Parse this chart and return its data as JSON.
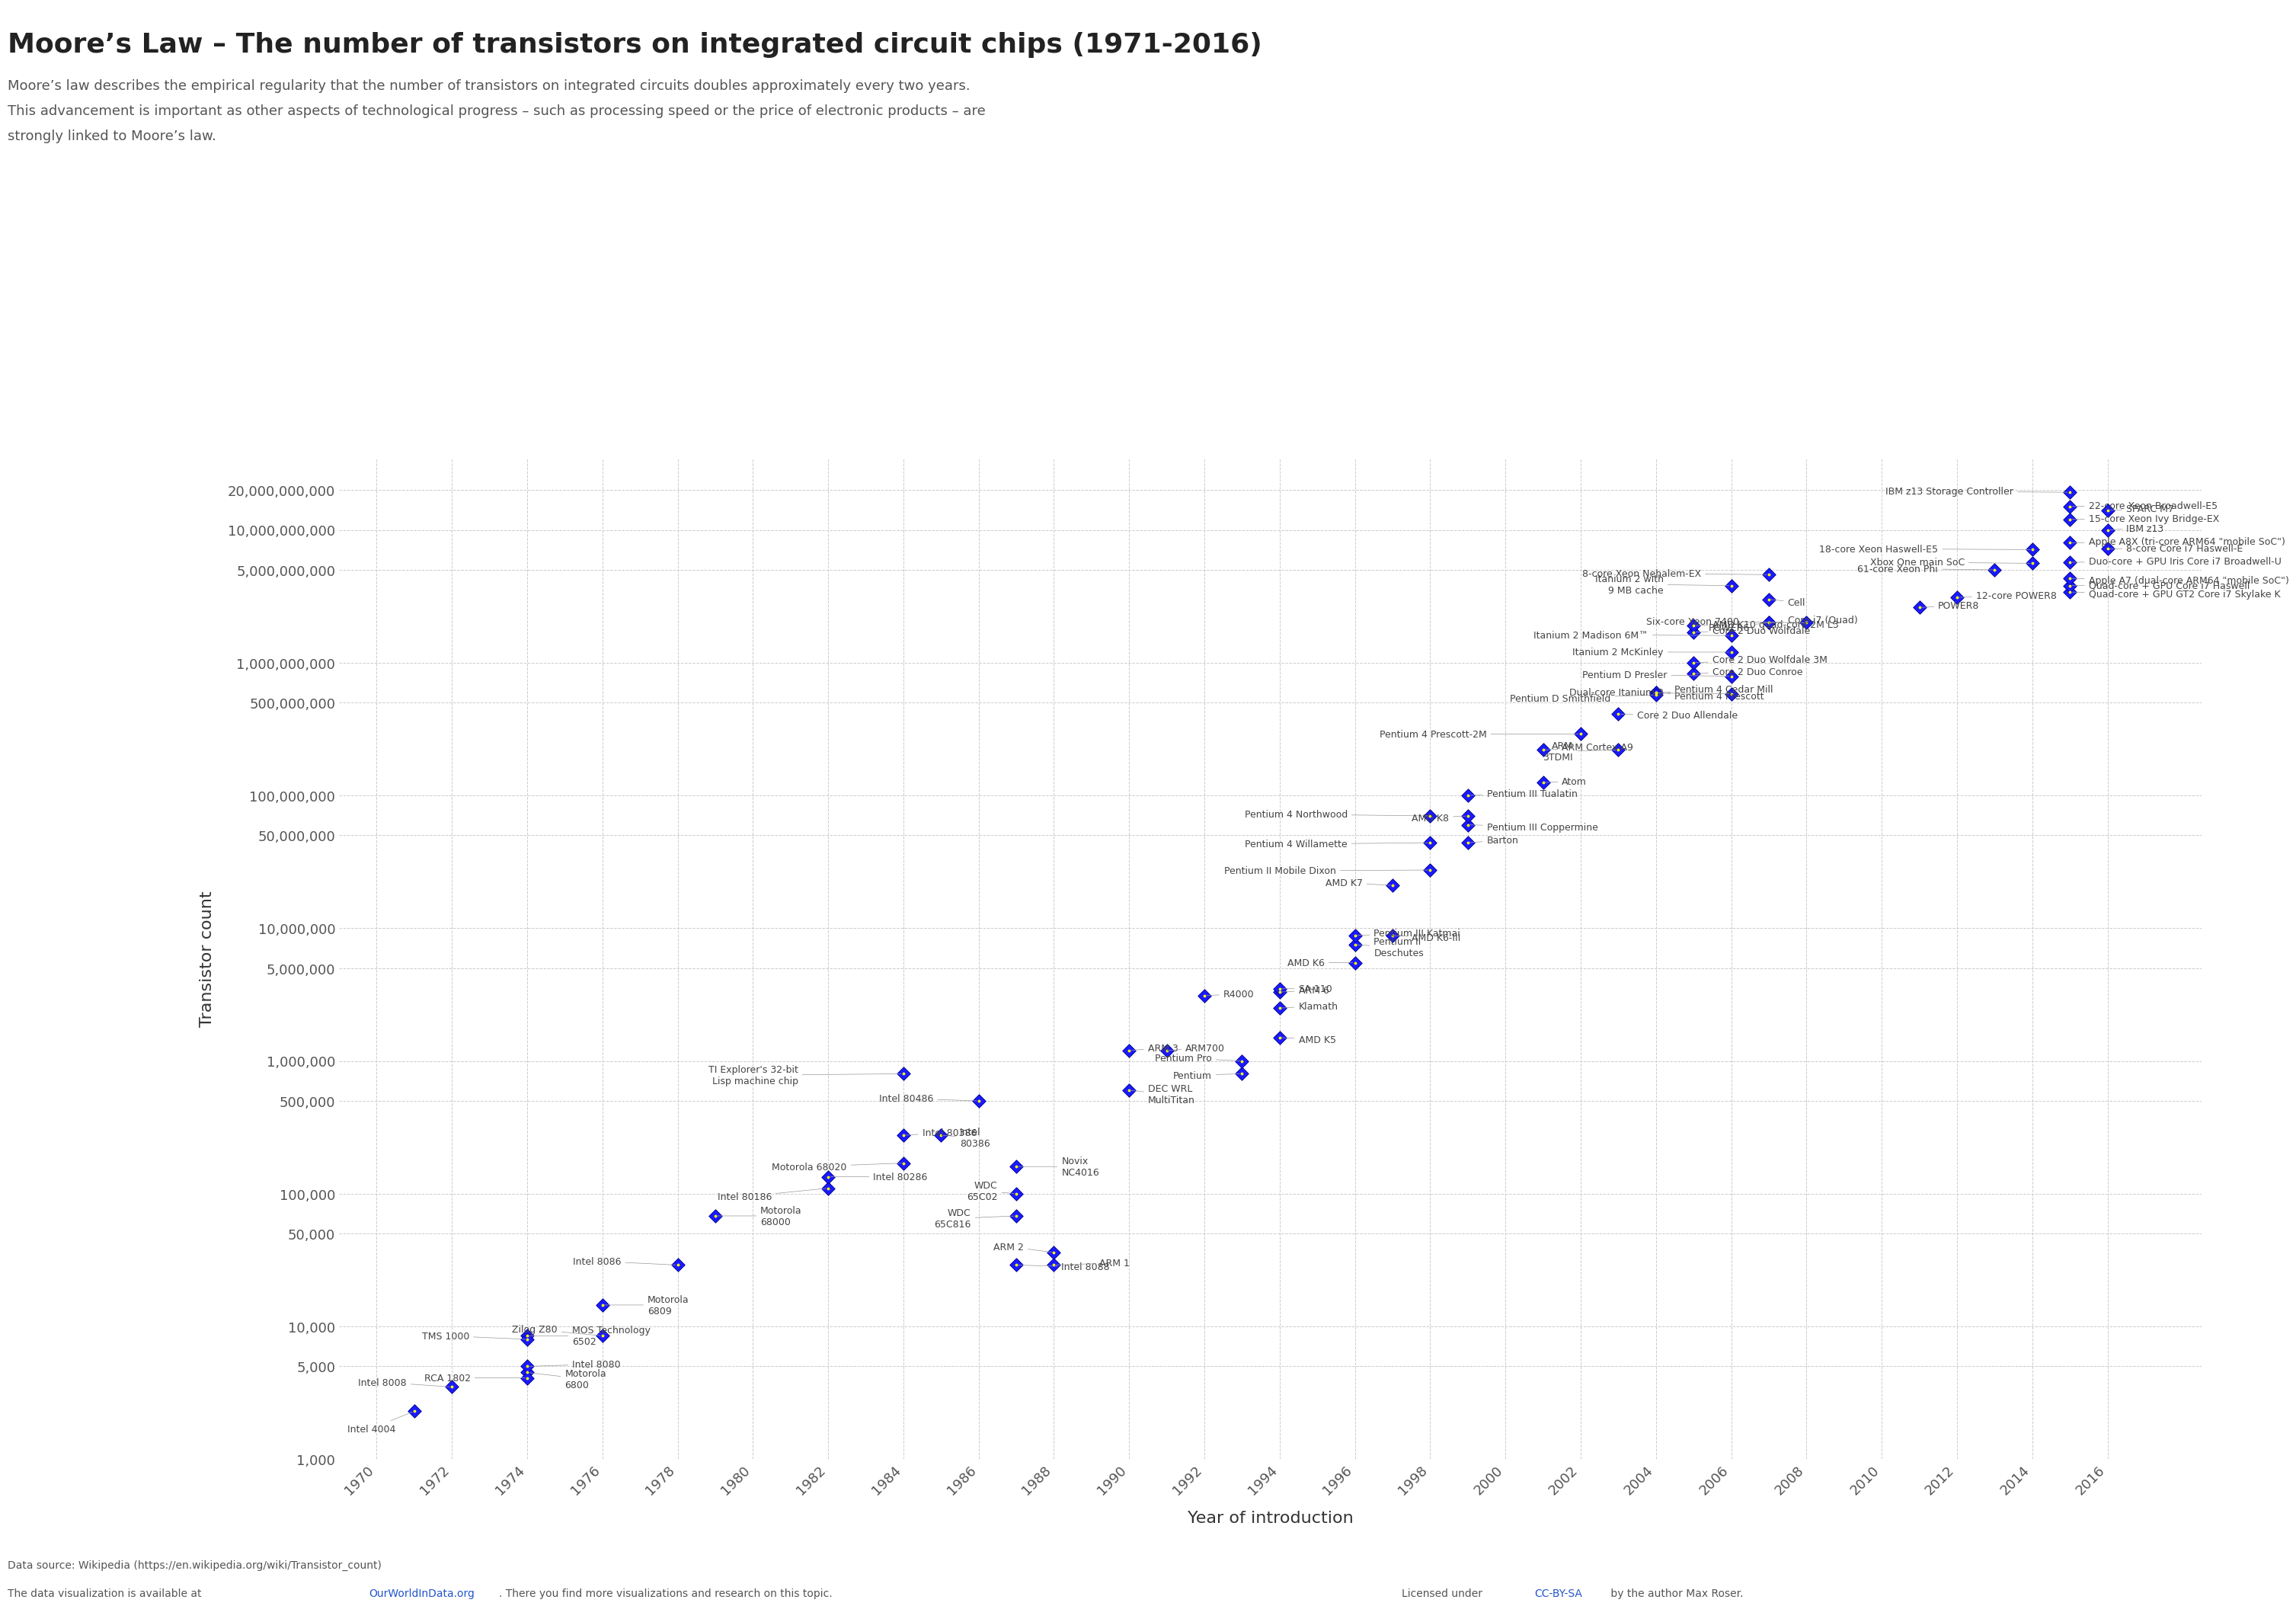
{
  "title": "Moore’s Law – The number of transistors on integrated circuit chips (1971-2016)",
  "subtitle_line1": "Moore’s law describes the empirical regularity that the number of transistors on integrated circuits doubles approximately every two years.",
  "subtitle_line2": "This advancement is important as other aspects of technological progress – such as processing speed or the price of electronic products – are",
  "subtitle_line3": "strongly linked to Moore’s law.",
  "xlabel": "Year of introduction",
  "ylabel": "Transistor count",
  "footer_left1": "Data source: Wikipedia (https://en.wikipedia.org/wiki/Transistor_count)",
  "footer_left2_pre": "The data visualization is available at ",
  "footer_left2_link": "OurWorldInData.org",
  "footer_left2_post": ". There you find more visualizations and research on this topic.",
  "footer_right_pre": "Licensed under ",
  "footer_right_link": "CC-BY-SA",
  "footer_right_post": " by the author Max Roser.",
  "bg_color": "#ffffff",
  "plot_bg_color": "#ffffff",
  "grid_color": "#cccccc",
  "marker_color": "#1a1aff",
  "marker_edge_color": "#00008b",
  "marker_inner_color": "#ffff00",
  "label_color": "#444444",
  "title_color": "#222222",
  "subtitle_color": "#555555",
  "logo_top_color": "#1a2e4a",
  "logo_bottom_color": "#c0392b",
  "link_color": "#2255cc",
  "data_points": [
    {
      "year": 1971,
      "transistors": 2300,
      "label": "Intel 4004"
    },
    {
      "year": 1972,
      "transistors": 3500,
      "label": "Intel 8008"
    },
    {
      "year": 1974,
      "transistors": 4500,
      "label": "Motorola\n6800"
    },
    {
      "year": 1974,
      "transistors": 4100,
      "label": "RCA 1802"
    },
    {
      "year": 1974,
      "transistors": 5000,
      "label": "Intel 8080"
    },
    {
      "year": 1974,
      "transistors": 8500,
      "label": "MOS Technology\n6502"
    },
    {
      "year": 1974,
      "transistors": 8000,
      "label": "TMS 1000"
    },
    {
      "year": 1976,
      "transistors": 8500,
      "label": "Zilog Z80"
    },
    {
      "year": 1976,
      "transistors": 14500,
      "label": "Motorola\n6809"
    },
    {
      "year": 1978,
      "transistors": 29000,
      "label": "Intel 8086"
    },
    {
      "year": 1979,
      "transistors": 68000,
      "label": "Motorola\n68000"
    },
    {
      "year": 1982,
      "transistors": 110000,
      "label": "Intel 80186"
    },
    {
      "year": 1982,
      "transistors": 134000,
      "label": "Intel 80286"
    },
    {
      "year": 1984,
      "transistors": 170000,
      "label": "Motorola 68020"
    },
    {
      "year": 1984,
      "transistors": 275000,
      "label": "Intel 80386"
    },
    {
      "year": 1984,
      "transistors": 800000,
      "label": "TI Explorer's 32-bit\nLisp machine chip"
    },
    {
      "year": 1985,
      "transistors": 275000,
      "label": "Intel\n80386"
    },
    {
      "year": 1986,
      "transistors": 500000,
      "label": "Intel 80486"
    },
    {
      "year": 1987,
      "transistors": 68000,
      "label": "WDC\n65C816"
    },
    {
      "year": 1987,
      "transistors": 100000,
      "label": "WDC\n65C02"
    },
    {
      "year": 1987,
      "transistors": 29000,
      "label": "Intel 8088"
    },
    {
      "year": 1987,
      "transistors": 160000,
      "label": "Novix\nNC4016"
    },
    {
      "year": 1988,
      "transistors": 29000,
      "label": "ARM 1"
    },
    {
      "year": 1988,
      "transistors": 36000,
      "label": "ARM 2"
    },
    {
      "year": 1990,
      "transistors": 600000,
      "label": "DEC WRL\nMultiTitan"
    },
    {
      "year": 1990,
      "transistors": 1200000,
      "label": "ARM 3"
    },
    {
      "year": 1991,
      "transistors": 1200000,
      "label": "ARM700"
    },
    {
      "year": 1992,
      "transistors": 3100000,
      "label": "R4000"
    },
    {
      "year": 1993,
      "transistors": 800000,
      "label": "Pentium"
    },
    {
      "year": 1993,
      "transistors": 1000000,
      "label": "Pentium Pro"
    },
    {
      "year": 1994,
      "transistors": 3300000,
      "label": "ARM 6"
    },
    {
      "year": 1994,
      "transistors": 1500000,
      "label": "AMD K5"
    },
    {
      "year": 1994,
      "transistors": 2500000,
      "label": "Klamath"
    },
    {
      "year": 1994,
      "transistors": 3500000,
      "label": "SA-110"
    },
    {
      "year": 1996,
      "transistors": 5500000,
      "label": "AMD K6"
    },
    {
      "year": 1996,
      "transistors": 7500000,
      "label": "Pentium II\nDeschutes"
    },
    {
      "year": 1996,
      "transistors": 8800000,
      "label": "Pentium III Katmai"
    },
    {
      "year": 1997,
      "transistors": 8800000,
      "label": "AMD K6-III"
    },
    {
      "year": 1997,
      "transistors": 21000000,
      "label": "AMD K7"
    },
    {
      "year": 1998,
      "transistors": 27400000,
      "label": "Pentium II Mobile Dixon"
    },
    {
      "year": 1998,
      "transistors": 44000000,
      "label": "Pentium 4 Willamette"
    },
    {
      "year": 1998,
      "transistors": 70000000,
      "label": "Pentium 4 Northwood"
    },
    {
      "year": 1999,
      "transistors": 44000000,
      "label": "Barton"
    },
    {
      "year": 1999,
      "transistors": 60000000,
      "label": "Pentium III Coppermine"
    },
    {
      "year": 1999,
      "transistors": 70000000,
      "label": "AMD K8"
    },
    {
      "year": 1999,
      "transistors": 100000000,
      "label": "Pentium III Tualatin"
    },
    {
      "year": 2001,
      "transistors": 125000000,
      "label": "Atom"
    },
    {
      "year": 2001,
      "transistors": 220000000,
      "label": "ARM Cortex-A9"
    },
    {
      "year": 2002,
      "transistors": 290000000,
      "label": "Pentium 4 Prescott-2M"
    },
    {
      "year": 2003,
      "transistors": 220000000,
      "label": "ARM\n3TDMI"
    },
    {
      "year": 2003,
      "transistors": 410000000,
      "label": "Core 2 Duo Allendale"
    },
    {
      "year": 2004,
      "transistors": 592000000,
      "label": "Pentium 4 Cedar Mill"
    },
    {
      "year": 2004,
      "transistors": 592000000,
      "label": "Pentium 4 Prescott"
    },
    {
      "year": 2004,
      "transistors": 572000000,
      "label": "Pentium D Smithfield"
    },
    {
      "year": 2005,
      "transistors": 826000000,
      "label": "Core 2 Duo Conroe"
    },
    {
      "year": 2005,
      "transistors": 1000000000,
      "label": "Core 2 Duo Wolfdale 3M"
    },
    {
      "year": 2005,
      "transistors": 1700000000,
      "label": "Core 2 Duo Wolfdale"
    },
    {
      "year": 2005,
      "transistors": 1900000000,
      "label": "AMD K10 quad-core 2M L3"
    },
    {
      "year": 2006,
      "transistors": 582000000,
      "label": "Dual-core Itanium 2"
    },
    {
      "year": 2006,
      "transistors": 790000000,
      "label": "Pentium D Presler"
    },
    {
      "year": 2006,
      "transistors": 1200000000,
      "label": "Itanium 2 McKinley"
    },
    {
      "year": 2006,
      "transistors": 1600000000,
      "label": "Itanium 2 Madison 6M™"
    },
    {
      "year": 2006,
      "transistors": 3800000000,
      "label": "Itanium 2 with\n9 MB cache"
    },
    {
      "year": 2007,
      "transistors": 2000000000,
      "label": "Core i7 (Quad)"
    },
    {
      "year": 2007,
      "transistors": 2000000000,
      "label": "POWER6"
    },
    {
      "year": 2007,
      "transistors": 3000000000,
      "label": "Cell"
    },
    {
      "year": 2008,
      "transistors": 2000000000,
      "label": "Six-core Xeon 7400"
    },
    {
      "year": 2007,
      "transistors": 4600000000,
      "label": "8-core Xeon Nehalem-EX"
    },
    {
      "year": 2011,
      "transistors": 2600000000,
      "label": "POWER8"
    },
    {
      "year": 2012,
      "transistors": 3100000000,
      "label": "12-core POWER8"
    },
    {
      "year": 2013,
      "transistors": 5000000000,
      "label": "61-core Xeon Phi"
    },
    {
      "year": 2014,
      "transistors": 5600000000,
      "label": "Xbox One main SoC"
    },
    {
      "year": 2014,
      "transistors": 7100000000,
      "label": "18-core Xeon Haswell-E5"
    },
    {
      "year": 2015,
      "transistors": 3400000000,
      "label": "Quad-core + GPU GT2 Core i7 Skylake K"
    },
    {
      "year": 2015,
      "transistors": 3800000000,
      "label": "Quad-core + GPU Core i7 Haswell"
    },
    {
      "year": 2015,
      "transistors": 4310000000,
      "label": "Apple A7 (dual-core ARM64 \"mobile SoC\")"
    },
    {
      "year": 2015,
      "transistors": 5700000000,
      "label": "Duo-core + GPU Iris Core i7 Broadwell-U"
    },
    {
      "year": 2015,
      "transistors": 8000000000,
      "label": "Apple A8X (tri-core ARM64 \"mobile SoC\")"
    },
    {
      "year": 2015,
      "transistors": 12000000000,
      "label": "15-core Xeon Ivy Bridge-EX"
    },
    {
      "year": 2015,
      "transistors": 15000000000,
      "label": "22-core Xeon Broadwell-E5"
    },
    {
      "year": 2015,
      "transistors": 19200000000,
      "label": "IBM z13 Storage Controller"
    },
    {
      "year": 2016,
      "transistors": 7200000000,
      "label": "8-core Core i7 Haswell-E"
    },
    {
      "year": 2016,
      "transistors": 10000000000,
      "label": "IBM z13"
    },
    {
      "year": 2016,
      "transistors": 14000000000,
      "label": "SPARC M7"
    }
  ],
  "yticks": [
    1000,
    5000,
    10000,
    50000,
    100000,
    500000,
    1000000,
    5000000,
    10000000,
    50000000,
    100000000,
    500000000,
    1000000000,
    5000000000,
    10000000000,
    20000000000
  ],
  "ytick_labels": [
    "1,000",
    "5,000",
    "10,000",
    "50,000",
    "100,000",
    "500,000",
    "1,000,000",
    "5,000,000",
    "10,000,000",
    "50,000,000",
    "100,000,000",
    "500,000,000",
    "1,000,000,000",
    "5,000,000,000",
    "10,000,000,000",
    "20,000,000,000"
  ],
  "xticks": [
    1970,
    1972,
    1974,
    1976,
    1978,
    1980,
    1982,
    1984,
    1986,
    1988,
    1990,
    1992,
    1994,
    1996,
    1998,
    2000,
    2002,
    2004,
    2006,
    2008,
    2010,
    2012,
    2014,
    2016
  ],
  "xlim": [
    1969.0,
    2018.5
  ],
  "ylim_log": [
    1200,
    35000000000
  ]
}
